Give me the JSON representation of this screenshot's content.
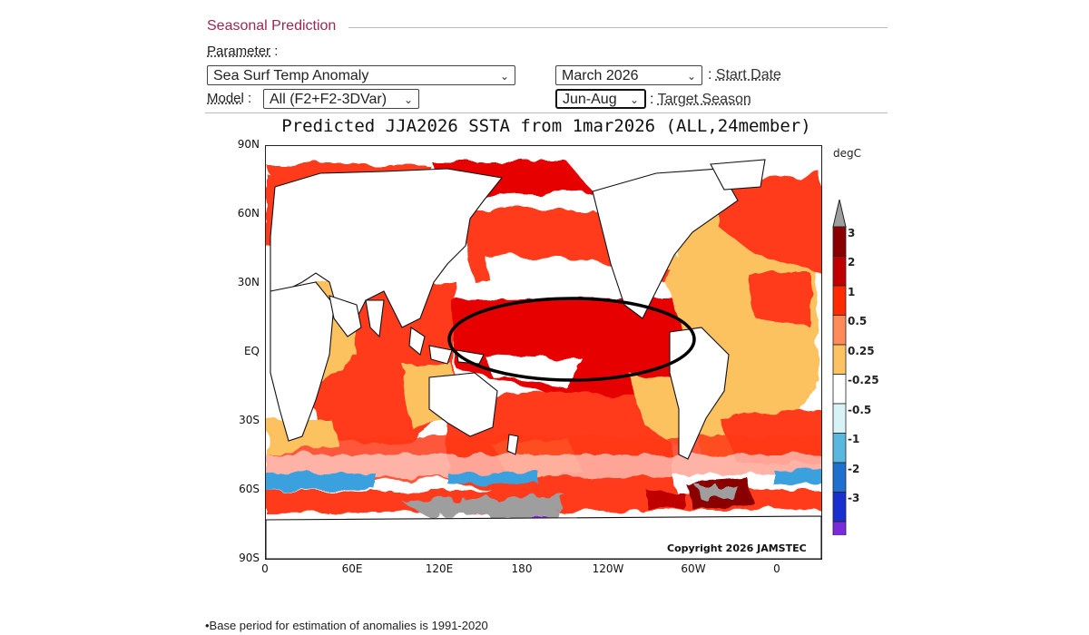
{
  "panel": {
    "section_title": "Seasonal Prediction",
    "parameter_label": "Parameter",
    "parameter_sep": " :",
    "parameter_value": "Sea Surf Temp Anomaly",
    "start_date_value": "March 2026",
    "start_date_label": "Start Date",
    "model_label": "Model",
    "model_sep": " :",
    "model_value": "All (F2+F2-3DVar)",
    "target_season_value": "Jun-Aug",
    "target_season_label": "Target Season",
    "colon": ":"
  },
  "figure": {
    "title": "Predicted JJA2026 SSTA from 1mar2026 (ALL,24member)",
    "unit": "degC",
    "copyright": "Copyright 2026 JAMSTEC",
    "lat_labels": [
      "90N",
      "60N",
      "30N",
      "EQ",
      "30S",
      "60S",
      "90S"
    ],
    "lon_labels": [
      "0",
      "60E",
      "120E",
      "180",
      "120W",
      "60W",
      "0"
    ],
    "colorbar": {
      "labels": [
        "3",
        "2",
        "1",
        "0.5",
        "0.25",
        "-0.25",
        "-0.5",
        "-1",
        "-2",
        "-3"
      ],
      "colors": [
        "#8a0000",
        "#c00000",
        "#ff2a00",
        "#ff8a5a",
        "#fdc261",
        "#ffffff",
        "#d7f3f7",
        "#5ab8e0",
        "#1f6fd0",
        "#1a2fcf",
        "#7a2bd9"
      ],
      "over_color": "#9e9e9e",
      "under_color": "#8a2be2"
    },
    "colors": {
      "strong_warm": "#e60000",
      "warm": "#ff3a1a",
      "mild": "#fdc261",
      "land": "#ffffff",
      "ice": "#9e9e9e",
      "cool": "#3aa0de",
      "annotation": "#000000"
    }
  },
  "footnote": "•Base period for estimation of anomalies is 1991-2020"
}
